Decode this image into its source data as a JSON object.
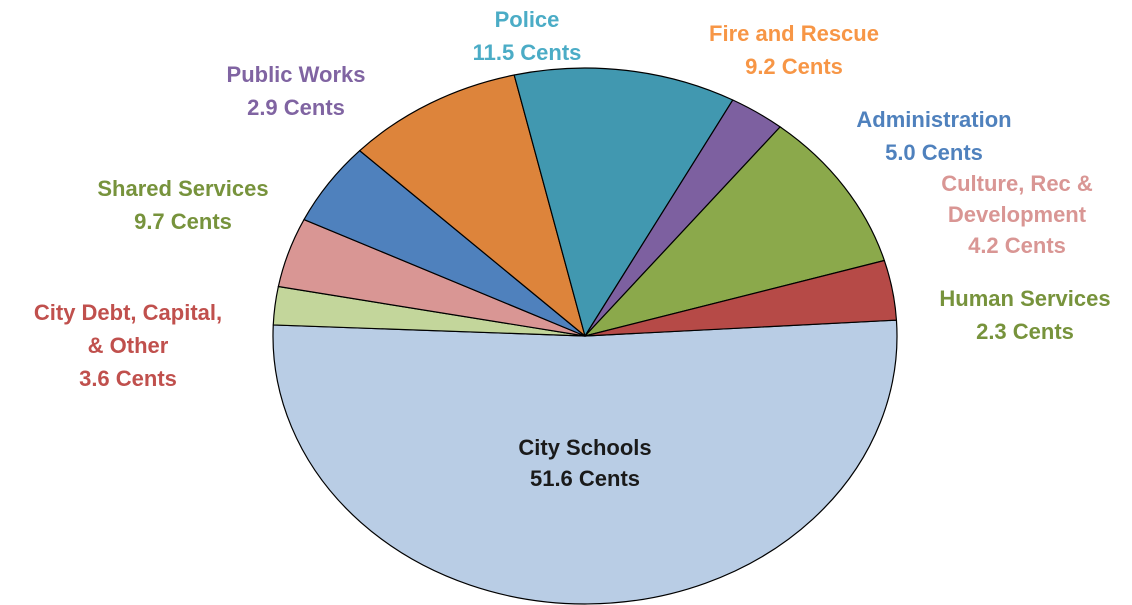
{
  "chart_data": {
    "type": "pie",
    "unit": "Cents",
    "slices": [
      {
        "label": "City Schools",
        "value": 51.6,
        "value_text": "51.6 Cents",
        "color": "#b9cde5",
        "label_color": "#1a1a1a"
      },
      {
        "label": "Human Services",
        "value": 2.3,
        "value_text": "2.3 Cents",
        "color": "#c3d69b",
        "label_color": "#77933c"
      },
      {
        "label": "Culture, Rec & Development",
        "value": 4.2,
        "value_text": "4.2 Cents",
        "color": "#d99694",
        "label_color": "#d99694"
      },
      {
        "label": "Administration",
        "value": 5.0,
        "value_text": "5.0 Cents",
        "color": "#4f81bd",
        "label_color": "#4f81bd"
      },
      {
        "label": "Fire and Rescue",
        "value": 9.2,
        "value_text": "9.2 Cents",
        "color": "#dd843b",
        "label_color": "#f79646"
      },
      {
        "label": "Police",
        "value": 11.5,
        "value_text": "11.5 Cents",
        "color": "#4198b0",
        "label_color": "#4bacc6"
      },
      {
        "label": "Public Works",
        "value": 2.9,
        "value_text": "2.9 Cents",
        "color": "#7d60a0",
        "label_color": "#8064a2"
      },
      {
        "label": "Shared Services",
        "value": 9.7,
        "value_text": "9.7 Cents",
        "color": "#8ba94b",
        "label_color": "#77933c"
      },
      {
        "label": "City Debt, Capital, & Other",
        "value": 3.6,
        "value_text": "3.6 Cents",
        "color": "#b64a47",
        "label_color": "#c0504d"
      }
    ]
  }
}
